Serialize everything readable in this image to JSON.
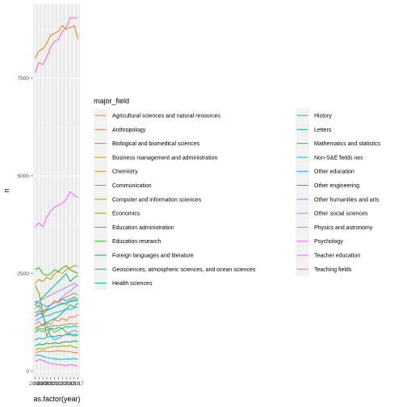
{
  "chart_data": {
    "type": "line",
    "xlabel": "as.factor(year)",
    "ylabel": "n",
    "ylim": [
      -150,
      9400
    ],
    "y_ticks": [
      0,
      2500,
      5000,
      7500
    ],
    "y_tick_labels": [
      "0",
      "2500",
      "5000",
      "7500"
    ],
    "x": [
      "2006",
      "2007",
      "2008",
      "2009",
      "2010",
      "2011",
      "2012",
      "2013",
      "2014",
      "2015",
      "2016",
      "2017"
    ],
    "x_tick_labels": [
      "2006",
      "2007",
      "2008",
      "2009",
      "2010",
      "2011",
      "2012",
      "2013",
      "2014",
      "2015",
      "2016",
      "2017"
    ],
    "grid": true,
    "legend_title": "major_field",
    "legend_position": "right",
    "series": [
      {
        "name": "Agricultural sciences and natural resources",
        "color": "#F8766D",
        "values": [
          1200,
          1280,
          1150,
          1250,
          1200,
          1330,
          1280,
          1360,
          1300,
          1400,
          1380,
          1450
        ]
      },
      {
        "name": "Anthropology",
        "color": "#F07F4C",
        "values": [
          480,
          500,
          520,
          510,
          500,
          520,
          530,
          520,
          510,
          500,
          480,
          470
        ]
      },
      {
        "name": "Biological and biomedical sciences",
        "color": "#E58700",
        "values": [
          8000,
          8200,
          8250,
          8400,
          8600,
          8650,
          8700,
          8850,
          8750,
          8800,
          8850,
          8500
        ]
      },
      {
        "name": "Business management and administration",
        "color": "#D89000",
        "values": [
          1600,
          1700,
          1550,
          1600,
          1700,
          1800,
          1750,
          1850,
          1900,
          1950,
          2000,
          1950
        ]
      },
      {
        "name": "Chemistry",
        "color": "#C99800",
        "values": [
          2250,
          2350,
          2300,
          2400,
          2350,
          2500,
          2550,
          2500,
          2600,
          2650,
          2700,
          2700
        ]
      },
      {
        "name": "Communication",
        "color": "#B79F00",
        "values": [
          550,
          580,
          570,
          600,
          620,
          640,
          630,
          650,
          640,
          660,
          620,
          600
        ]
      },
      {
        "name": "Computer and information sciences",
        "color": "#A3A500",
        "values": [
          1400,
          1500,
          1450,
          1550,
          1600,
          1650,
          1700,
          1750,
          1700,
          1800,
          1850,
          1800
        ]
      },
      {
        "name": "Economics",
        "color": "#8BAB00",
        "values": [
          1050,
          1100,
          1080,
          1120,
          1150,
          1170,
          1160,
          1180,
          1200,
          1220,
          1210,
          1230
        ]
      },
      {
        "name": "Education administration",
        "color": "#6BB100",
        "values": [
          2200,
          2000,
          1500,
          900,
          1100,
          1000,
          1050,
          1100,
          1000,
          950,
          900,
          950
        ]
      },
      {
        "name": "Education research",
        "color": "#39B600",
        "values": [
          2600,
          2650,
          2500,
          2450,
          2500,
          2600,
          2550,
          2650,
          2700,
          2600,
          2550,
          2500
        ]
      },
      {
        "name": "Foreign languages and literature",
        "color": "#00BA38",
        "values": [
          650,
          700,
          680,
          720,
          700,
          730,
          710,
          740,
          760,
          750,
          780,
          760
        ]
      },
      {
        "name": "Geosciences, atmospheric sciences, and ocean sciences",
        "color": "#00BD5F",
        "values": [
          1100,
          1150,
          1200,
          1250,
          1300,
          1350,
          1400,
          1500,
          1600,
          1700,
          1650,
          1750
        ]
      },
      {
        "name": "Health sciences",
        "color": "#00BF7D",
        "values": [
          1700,
          1800,
          1900,
          2000,
          2100,
          2200,
          2300,
          2400,
          2500,
          2300,
          2400,
          2450
        ]
      },
      {
        "name": "History",
        "color": "#00C098",
        "values": [
          1000,
          1050,
          1020,
          1060,
          1100,
          1080,
          1120,
          1100,
          1150,
          1130,
          1160,
          1140
        ]
      },
      {
        "name": "Letters",
        "color": "#00C0B1",
        "values": [
          800,
          850,
          830,
          870,
          900,
          880,
          920,
          910,
          940,
          930,
          950,
          920
        ]
      },
      {
        "name": "Mathematics and statistics",
        "color": "#00BFC7",
        "values": [
          1300,
          1350,
          1400,
          1420,
          1450,
          1500,
          1520,
          1550,
          1600,
          1580,
          1620,
          1650
        ]
      },
      {
        "name": "Non-S&E fields nec",
        "color": "#00BBDA",
        "values": [
          400,
          420,
          380,
          350,
          330,
          320,
          310,
          300,
          320,
          310,
          330,
          300
        ]
      },
      {
        "name": "Other education",
        "color": "#00B4EB",
        "values": [
          1800,
          1750,
          1700,
          1650,
          1700,
          1750,
          1800,
          1850,
          1800,
          1850,
          1900,
          1850
        ]
      },
      {
        "name": "Other engineering",
        "color": "#00ACF8",
        "values": [
          1500,
          1550,
          1520,
          1580,
          1600,
          1650,
          1700,
          1720,
          1750,
          1780,
          1800,
          1820
        ]
      },
      {
        "name": "Other humanities and arts",
        "color": "#619CFF",
        "values": [
          1700,
          1650,
          1400,
          1200,
          900,
          800,
          850,
          900,
          950,
          1000,
          1050,
          1000
        ]
      },
      {
        "name": "Other social sciences",
        "color": "#A58AFF",
        "values": [
          1400,
          1450,
          1500,
          1600,
          1700,
          1750,
          1800,
          1900,
          2000,
          2050,
          2150,
          2200
        ]
      },
      {
        "name": "Physics and astronomy",
        "color": "#C77CFF",
        "values": [
          1750,
          1800,
          1850,
          1900,
          1950,
          2000,
          2050,
          2100,
          2150,
          2200,
          2250,
          2200
        ]
      },
      {
        "name": "Psychology",
        "color": "#E76BF3",
        "values": [
          3700,
          3800,
          3700,
          3950,
          4100,
          4200,
          4250,
          4300,
          4400,
          4600,
          4500,
          4450
        ]
      },
      {
        "name": "Teacher education",
        "color": "#FA62DB",
        "values": [
          250,
          300,
          280,
          230,
          200,
          180,
          170,
          160,
          150,
          170,
          160,
          130
        ]
      },
      {
        "name": "Teaching fields",
        "color": "#FF62BC",
        "values": [
          7650,
          7900,
          7850,
          8050,
          8300,
          8450,
          8500,
          8700,
          8800,
          9050,
          9050,
          9050
        ]
      }
    ]
  }
}
